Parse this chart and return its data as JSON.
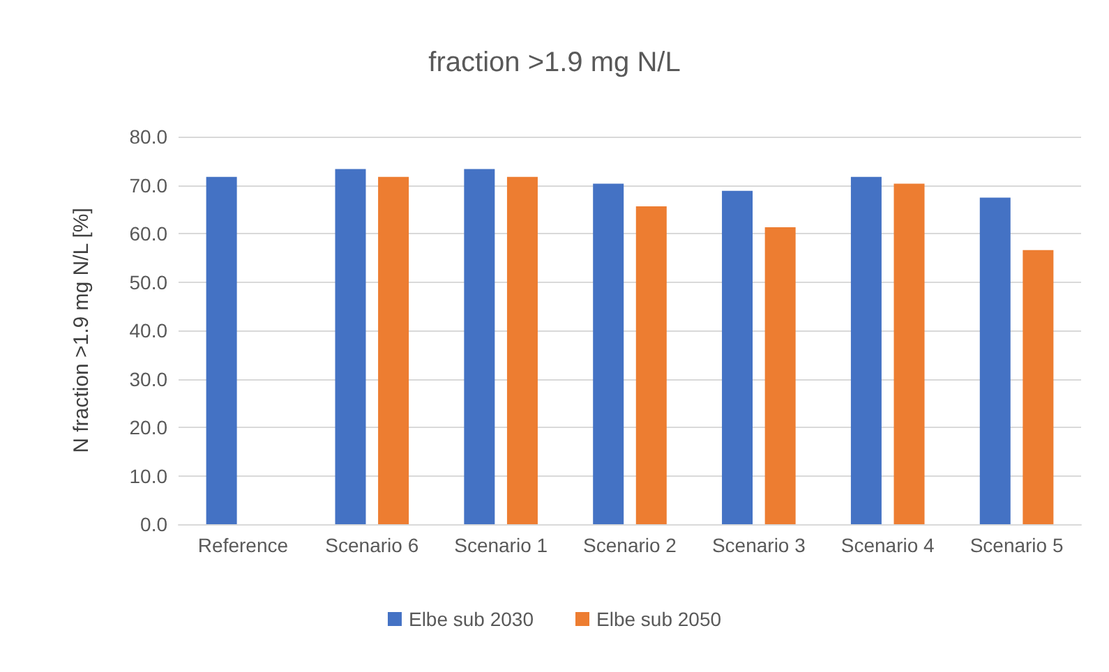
{
  "chart_data": {
    "type": "bar",
    "title": "fraction >1.9 mg N/L",
    "ylabel": "N fraction >1.9 mg N/L [%]",
    "categories": [
      "Reference",
      "Scenario 6",
      "Scenario 1",
      "Scenario 2",
      "Scenario 3",
      "Scenario 4",
      "Scenario 5"
    ],
    "series": [
      {
        "name": "Elbe sub 2030",
        "color": "#4472c4",
        "values": [
          71.7,
          73.3,
          73.3,
          70.3,
          68.8,
          71.7,
          67.4
        ]
      },
      {
        "name": "Elbe sub 2050",
        "color": "#ed7d31",
        "values": [
          null,
          71.7,
          71.7,
          65.6,
          61.3,
          70.3,
          56.6
        ]
      }
    ],
    "ylim": [
      0,
      80
    ],
    "yticks": [
      {
        "value": 0,
        "label": "0.0"
      },
      {
        "value": 10,
        "label": "10.0"
      },
      {
        "value": 20,
        "label": "20.0"
      },
      {
        "value": 30,
        "label": "30.0"
      },
      {
        "value": 40,
        "label": "40.0"
      },
      {
        "value": 50,
        "label": "50.0"
      },
      {
        "value": 60,
        "label": "60.0"
      },
      {
        "value": 70,
        "label": "70.0"
      },
      {
        "value": 80,
        "label": "80.0"
      }
    ],
    "grid": "y",
    "legend": "bottom"
  }
}
